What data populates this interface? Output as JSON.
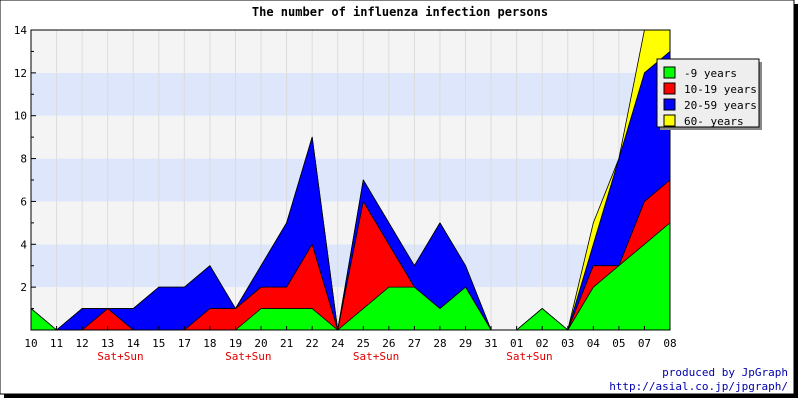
{
  "chart_data": {
    "type": "area",
    "stacked": true,
    "title": "The number of influenza infection persons",
    "categories": [
      "10",
      "11",
      "12",
      "13",
      "14",
      "15",
      "17",
      "18",
      "19",
      "20",
      "21",
      "22",
      "24",
      "25",
      "26",
      "27",
      "28",
      "29",
      "31",
      "01",
      "02",
      "03",
      "04",
      "05",
      "07",
      "08"
    ],
    "weekend_label": "Sat+Sun",
    "weekend_indices": [
      3,
      8,
      13,
      19
    ],
    "ylim": [
      0,
      14
    ],
    "yticks": [
      2,
      4,
      6,
      8,
      10,
      12,
      14
    ],
    "grid": true,
    "legend_position": "top-right",
    "series": [
      {
        "name": "-9 years",
        "color": "#00ff00",
        "values": [
          1,
          0,
          0,
          0,
          0,
          0,
          0,
          0,
          0,
          1,
          1,
          1,
          0,
          1,
          2,
          2,
          1,
          2,
          0,
          0,
          1,
          0,
          2,
          3,
          4,
          5
        ]
      },
      {
        "name": "10-19 years",
        "color": "#ff0000",
        "values": [
          0,
          0,
          0,
          1,
          0,
          0,
          0,
          1,
          1,
          1,
          1,
          3,
          0,
          5,
          2,
          0,
          0,
          0,
          0,
          0,
          0,
          0,
          1,
          0,
          2,
          2
        ]
      },
      {
        "name": "20-59 years",
        "color": "#0000ff",
        "values": [
          0,
          0,
          1,
          0,
          1,
          2,
          2,
          2,
          0,
          1,
          3,
          5,
          0,
          1,
          1,
          1,
          4,
          1,
          0,
          0,
          0,
          0,
          1,
          5,
          6,
          6
        ]
      },
      {
        "name": "60- years",
        "color": "#ffff00",
        "values": [
          0,
          0,
          0,
          0,
          0,
          0,
          0,
          0,
          0,
          0,
          0,
          0,
          0,
          0,
          0,
          0,
          0,
          0,
          0,
          0,
          0,
          0,
          1,
          0,
          2,
          1
        ]
      }
    ]
  },
  "credits": {
    "line1": "produced by JpGraph",
    "line2": "http://asial.co.jp/jpgraph/"
  }
}
